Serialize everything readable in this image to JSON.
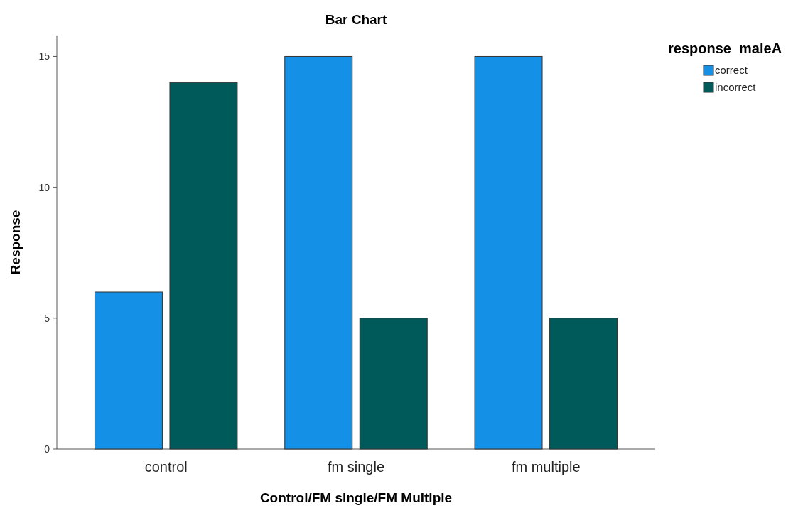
{
  "chart_data": {
    "type": "bar",
    "title": "Bar Chart",
    "xlabel": "Control/FM single/FM Multiple",
    "ylabel": "Response",
    "legend_title": "response_maleA",
    "categories": [
      "control",
      "fm single",
      "fm multiple"
    ],
    "series": [
      {
        "name": "correct",
        "color": "#1490e6",
        "values": [
          6,
          15,
          15
        ]
      },
      {
        "name": "incorrect",
        "color": "#005a5a",
        "values": [
          14,
          5,
          5
        ]
      }
    ],
    "ylim": [
      0,
      15.8
    ],
    "yticks": [
      0,
      5,
      10,
      15
    ],
    "grid": false,
    "legend": "top right"
  }
}
